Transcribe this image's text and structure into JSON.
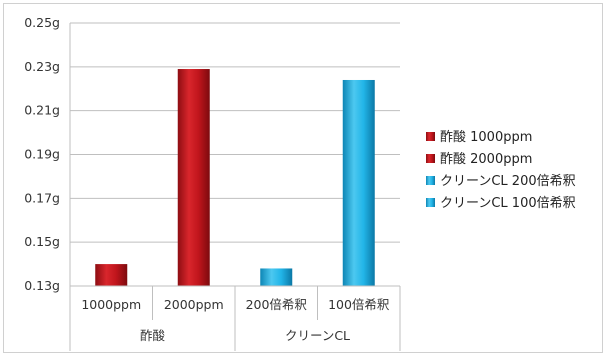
{
  "chart_data": {
    "type": "bar",
    "yaxis": {
      "ticks": [
        "0.25g",
        "0.23g",
        "0.21g",
        "0.19g",
        "0.17g",
        "0.15g",
        "0.13g"
      ],
      "tick_values": [
        0.25,
        0.23,
        0.21,
        0.19,
        0.17,
        0.15,
        0.13
      ],
      "ylim": [
        0.13,
        0.25
      ],
      "unit": "g"
    },
    "grid": "horizontal",
    "groups": [
      {
        "label": "酢酸",
        "categories": [
          "1000ppm",
          "2000ppm"
        ]
      },
      {
        "label": "クリーンCL",
        "categories": [
          "200倍希釈",
          "100倍希釈"
        ]
      }
    ],
    "categories": [
      "1000ppm",
      "2000ppm",
      "200倍希釈",
      "100倍希釈"
    ],
    "series": [
      {
        "name": "酢酸 1000ppm",
        "color": "#c0151c",
        "category_index": 0,
        "value": 0.14
      },
      {
        "name": "酢酸 2000ppm",
        "color": "#c0151c",
        "category_index": 1,
        "value": 0.229
      },
      {
        "name": "クリーンCL 200倍希釈",
        "color": "#22b5e8",
        "category_index": 2,
        "value": 0.138
      },
      {
        "name": "クリーンCL 100倍希釈",
        "color": "#22b5e8",
        "category_index": 3,
        "value": 0.224
      }
    ],
    "legend_position": "right"
  }
}
